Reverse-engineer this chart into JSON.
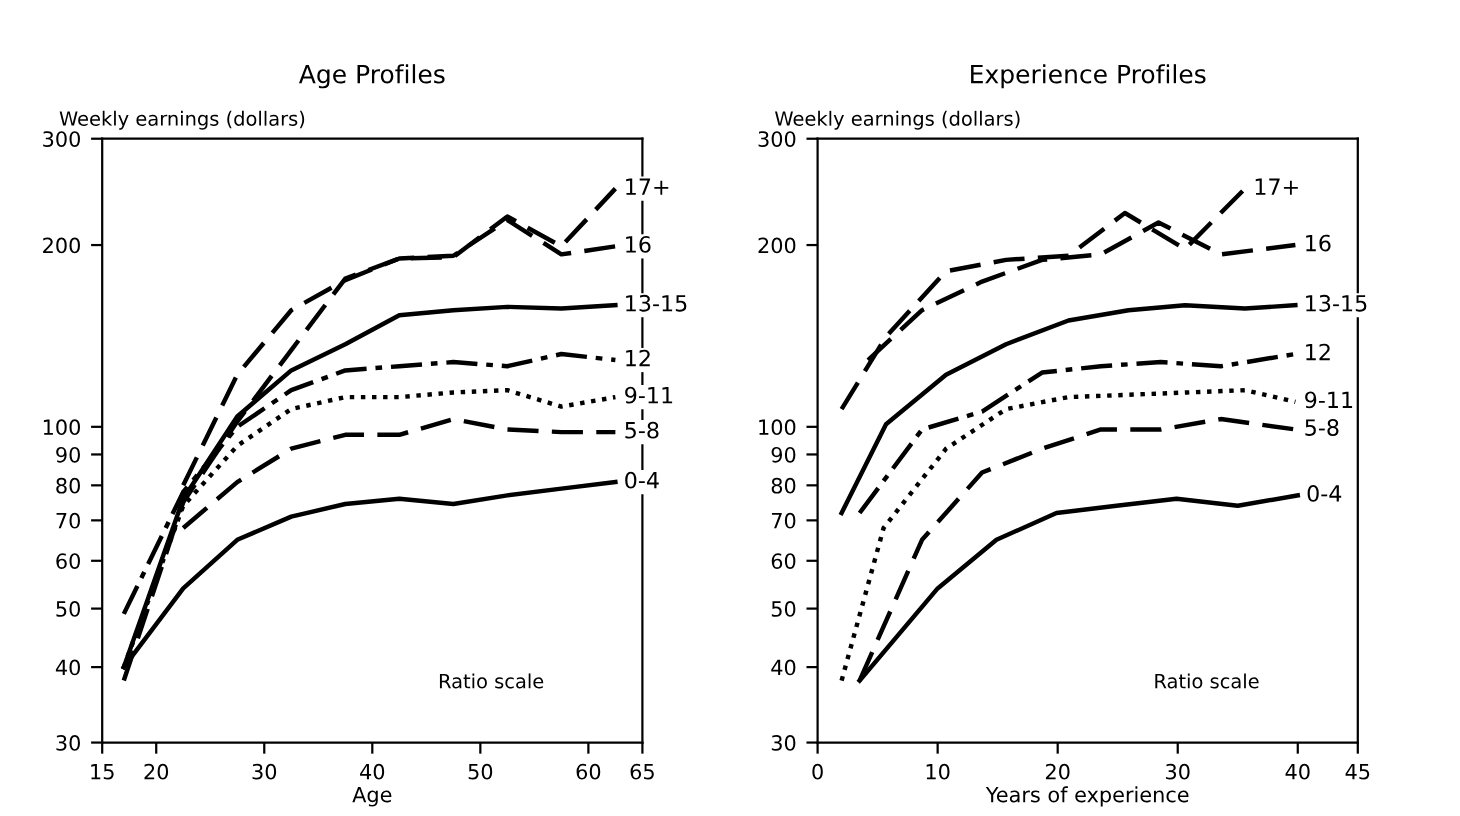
{
  "chart_data": [
    {
      "type": "line",
      "title": "Age Profiles",
      "ylabel": "Weekly earnings (dollars)",
      "xlabel": "Age",
      "log": "y",
      "grid": false,
      "xlim": [
        15,
        65
      ],
      "xticks": [
        15,
        20,
        30,
        40,
        50,
        60,
        65
      ],
      "ylim": [
        30,
        300
      ],
      "yticks": [
        30,
        40,
        50,
        60,
        70,
        80,
        90,
        100,
        200,
        300
      ],
      "annotations": [
        "Ratio scale"
      ],
      "series": [
        {
          "name": "17+",
          "color": "#000000",
          "line_style": "dashed",
          "x": [
            17,
            22.5,
            27.5,
            32.5,
            37.5,
            42.5,
            47.5,
            52.5,
            57.5,
            62.5
          ],
          "values": [
            38,
            75,
            102,
            134,
            176,
            190,
            191,
            223,
            199,
            248
          ]
        },
        {
          "name": "16",
          "color": "#000000",
          "line_style": "dashed",
          "x": [
            22.5,
            27.5,
            32.5,
            37.5,
            42.5,
            47.5,
            52.5,
            57.5,
            62.5
          ],
          "values": [
            80,
            122,
            156,
            175,
            190,
            192,
            220,
            193,
            199
          ]
        },
        {
          "name": "13-15",
          "color": "#000000",
          "line_style": "solid",
          "x": [
            17,
            22.5,
            27.5,
            32.5,
            37.5,
            42.5,
            47.5,
            52.5,
            57.5,
            62.5
          ],
          "values": [
            40,
            76,
            104,
            124,
            137,
            153,
            156,
            158,
            157,
            159
          ]
        },
        {
          "name": "12",
          "color": "#000000",
          "line_style": "dashdot",
          "x": [
            17,
            22.5,
            27.5,
            32.5,
            37.5,
            42.5,
            47.5,
            52.5,
            57.5,
            62.5
          ],
          "values": [
            49,
            78,
            100,
            115,
            124,
            126,
            128,
            126,
            132,
            129
          ]
        },
        {
          "name": "9-11",
          "color": "#000000",
          "line_style": "dotted",
          "x": [
            17,
            22.5,
            27.5,
            32.5,
            37.5,
            42.5,
            47.5,
            52.5,
            57.5,
            62.5
          ],
          "values": [
            40,
            74,
            93,
            107,
            112,
            112,
            114,
            115,
            108,
            112
          ]
        },
        {
          "name": "5-8",
          "color": "#000000",
          "line_style": "dashed",
          "x": [
            22.5,
            27.5,
            32.5,
            37.5,
            42.5,
            47.5,
            52.5,
            57.5,
            62.5
          ],
          "values": [
            68,
            81,
            92,
            97,
            97,
            103,
            99,
            98,
            98
          ]
        },
        {
          "name": "0-4",
          "color": "#000000",
          "line_style": "solid",
          "x": [
            17,
            22.5,
            27.5,
            32.5,
            37.5,
            42.5,
            47.5,
            52.5,
            57.5,
            62.5
          ],
          "values": [
            40,
            54,
            65,
            71,
            74.5,
            76,
            74.5,
            77,
            79,
            81
          ]
        }
      ]
    },
    {
      "type": "line",
      "title": "Experience Profiles",
      "ylabel": "Weekly earnings (dollars)",
      "xlabel": "Years of experience",
      "log": "y",
      "grid": false,
      "xlim": [
        0,
        45
      ],
      "xticks": [
        0,
        10,
        20,
        30,
        40,
        45
      ],
      "ylim": [
        30,
        300
      ],
      "yticks": [
        30,
        40,
        50,
        60,
        70,
        80,
        90,
        100,
        200,
        300
      ],
      "annotations": [
        "Ratio scale"
      ],
      "series": [
        {
          "name": "17+",
          "color": "#000000",
          "line_style": "dashed",
          "x": [
            2,
            5.7,
            10.7,
            15.7,
            20.9,
            25.6,
            30.6,
            35.6
          ],
          "values": [
            107,
            141,
            181,
            189,
            192,
            226,
            197,
            248
          ]
        },
        {
          "name": "16",
          "color": "#000000",
          "line_style": "dashed",
          "x": [
            4.2,
            8.7,
            13.7,
            18.7,
            23.6,
            28.4,
            33.6,
            39.8
          ],
          "values": [
            129,
            156,
            174,
            189,
            193,
            218,
            193,
            200
          ]
        },
        {
          "name": "13-15",
          "color": "#000000",
          "line_style": "solid",
          "x": [
            2,
            5.7,
            10.7,
            15.7,
            20.9,
            25.9,
            30.6,
            35.6,
            39.8
          ],
          "values": [
            72,
            101,
            122,
            137,
            150,
            156,
            159,
            157,
            159
          ]
        },
        {
          "name": "12",
          "color": "#000000",
          "line_style": "dashdot",
          "x": [
            3.5,
            8.7,
            13.7,
            18.7,
            23.6,
            28.6,
            33.6,
            39.8
          ],
          "values": [
            72,
            99,
            106,
            123,
            126,
            128,
            126,
            132
          ]
        },
        {
          "name": "9-11",
          "color": "#000000",
          "line_style": "dotted",
          "x": [
            2,
            5.5,
            10.7,
            15.7,
            20.9,
            25.9,
            30.8,
            35.6,
            39.8
          ],
          "values": [
            38,
            68,
            92,
            107,
            112,
            113,
            114,
            115,
            110
          ]
        },
        {
          "name": "5-8",
          "color": "#000000",
          "line_style": "dashed",
          "x": [
            3.5,
            8.7,
            13.7,
            18.7,
            23.6,
            28.6,
            33.6,
            39.8
          ],
          "values": [
            38,
            65,
            84,
            92,
            99,
            99,
            103,
            99
          ]
        },
        {
          "name": "0-4",
          "color": "#000000",
          "line_style": "solid",
          "x": [
            3.5,
            10,
            14.9,
            19.9,
            24.9,
            29.9,
            35,
            40
          ],
          "values": [
            38,
            54,
            65,
            72,
            74,
            76,
            74,
            77
          ]
        }
      ]
    }
  ]
}
